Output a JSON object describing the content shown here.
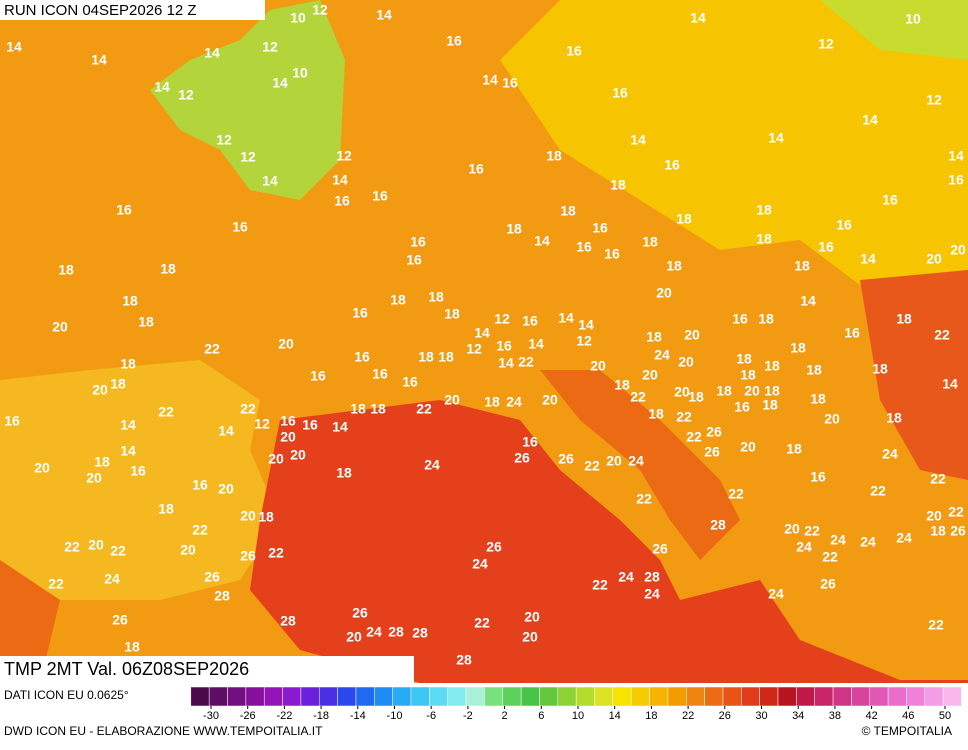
{
  "header": {
    "title": "RUN ICON 04SEP2026 12 Z"
  },
  "map": {
    "field": "TMP 2MT Val. 06Z08SEP2026",
    "labels": [
      12,
      14,
      10,
      12,
      14,
      14,
      14,
      16,
      16,
      14,
      10,
      12,
      10,
      14,
      12,
      14,
      14,
      16,
      16,
      12,
      14,
      12,
      14,
      14,
      12,
      12,
      18,
      16,
      14,
      14,
      14,
      16,
      18,
      16,
      16,
      16,
      16,
      16,
      18,
      18,
      16,
      18,
      16,
      18,
      16,
      14,
      16,
      18,
      18,
      16,
      16,
      16,
      16,
      18,
      18,
      14,
      20,
      20,
      18,
      18,
      18,
      18,
      18,
      16,
      20,
      14,
      20,
      18,
      18,
      14,
      12,
      16,
      14,
      14,
      16,
      18,
      16,
      18,
      22,
      22,
      20,
      18,
      18,
      12,
      16,
      14,
      12,
      18,
      20,
      18,
      16,
      14,
      22,
      20,
      24,
      20,
      18,
      18,
      18,
      16,
      16,
      16,
      18,
      20,
      20,
      18,
      18,
      20,
      18,
      18,
      18,
      20,
      18,
      14,
      22,
      18,
      18,
      22,
      20,
      18,
      24,
      20,
      22,
      18,
      22,
      18,
      16,
      18,
      18,
      16,
      22,
      12,
      16,
      16,
      14,
      14,
      14,
      20,
      18,
      20,
      16,
      22,
      26,
      20,
      18,
      20,
      20,
      18,
      14,
      16,
      18,
      24,
      26,
      26,
      22,
      20,
      24,
      26,
      24,
      20,
      20,
      16,
      20,
      16,
      22,
      22,
      18,
      20,
      18,
      22,
      22,
      22,
      28,
      20,
      22,
      24,
      24,
      24,
      20,
      22,
      26,
      18,
      22,
      20,
      22,
      20,
      26,
      22,
      26,
      24,
      26,
      24,
      22,
      22,
      24,
      26,
      28,
      24,
      28,
      22,
      24,
      26,
      24,
      26,
      28,
      26,
      22,
      20,
      20,
      22,
      18,
      20,
      24,
      28,
      28,
      28
    ],
    "legend_label": "DATI ICON EU 0.0625°"
  },
  "legend": {
    "ticks": [
      -30,
      -26,
      -22,
      -18,
      -14,
      -10,
      -6,
      -2,
      2,
      6,
      10,
      14,
      18,
      22,
      26,
      30,
      34,
      38,
      42,
      46,
      50
    ]
  },
  "footer": {
    "credit": "DWD ICON EU - ELABORAZIONE WWW.TEMPOITALIA.IT",
    "brand": "© TEMPOITALIA"
  }
}
